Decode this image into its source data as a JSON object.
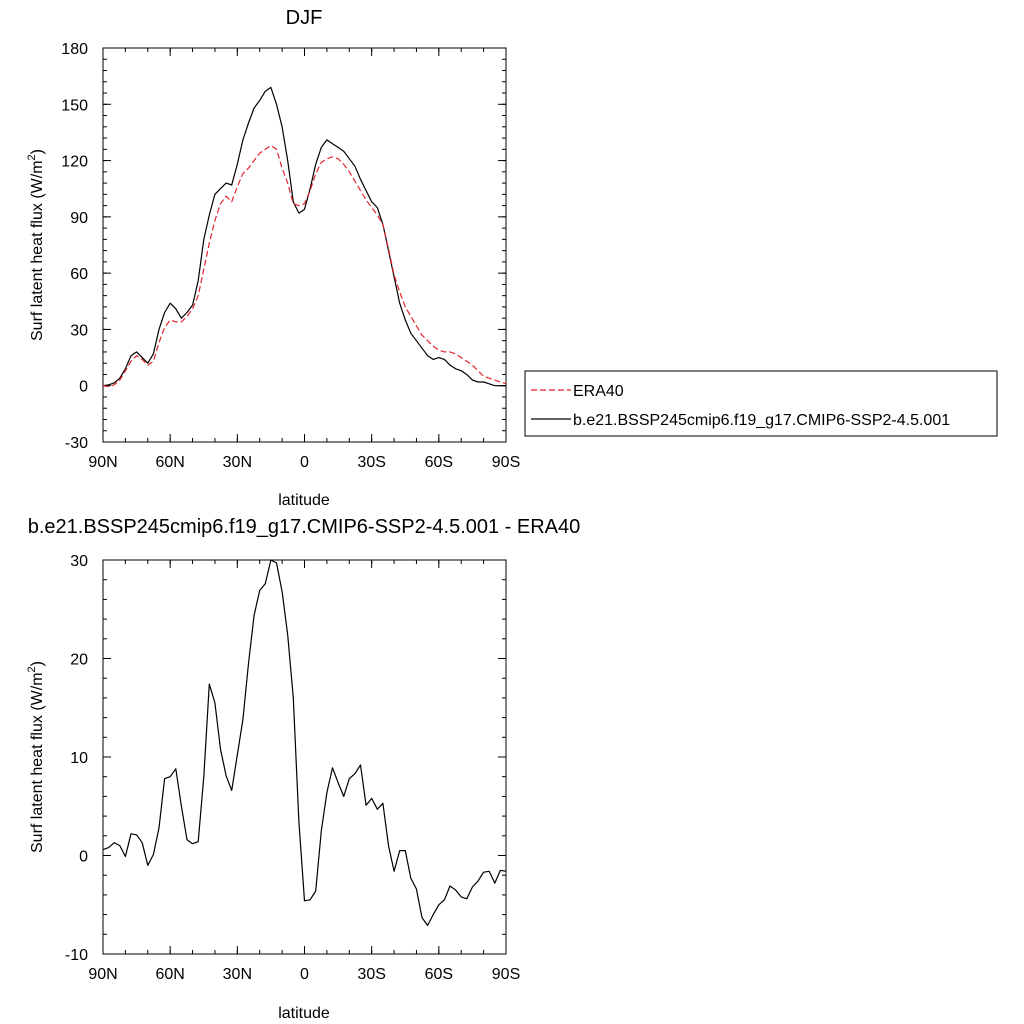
{
  "colors": {
    "ERA40": "#e3242b",
    "model": "#000000"
  },
  "chart_data": [
    {
      "type": "line",
      "title": "DJF",
      "xlabel": "latitude",
      "ylabel_main": "Surf latent heat flux (W/m",
      "ylabel_sup": "2",
      "ylabel_close": ")",
      "xlim": [
        90,
        -90
      ],
      "ylim": [
        -30,
        180
      ],
      "xticks": [
        {
          "value": 90,
          "label": "90N"
        },
        {
          "value": 60,
          "label": "60N"
        },
        {
          "value": 30,
          "label": "30N"
        },
        {
          "value": 0,
          "label": "0"
        },
        {
          "value": -30,
          "label": "30S"
        },
        {
          "value": -60,
          "label": "60S"
        },
        {
          "value": -90,
          "label": "90S"
        }
      ],
      "yticks": [
        {
          "value": -30,
          "label": "-30"
        },
        {
          "value": 0,
          "label": "0"
        },
        {
          "value": 30,
          "label": "30"
        },
        {
          "value": 60,
          "label": "60"
        },
        {
          "value": 90,
          "label": "90"
        },
        {
          "value": 120,
          "label": "120"
        },
        {
          "value": 150,
          "label": "150"
        },
        {
          "value": 180,
          "label": "180"
        }
      ],
      "legend": {
        "placement": "right",
        "entries": [
          "ERA40",
          "b.e21.BSSP245cmip6.f19_g17.CMIP6-SSP2-4.5.001"
        ]
      },
      "series": [
        {
          "name": "b.e21.BSSP245cmip6.f19_g17.CMIP6-SSP2-4.5.001",
          "style": "solid",
          "x": [
            90,
            87.5,
            85,
            82.5,
            80,
            77.5,
            75,
            72.5,
            70,
            67.5,
            65,
            62.5,
            60,
            57.5,
            55,
            52.5,
            50,
            47.5,
            45,
            42.5,
            40,
            37.5,
            35,
            32.5,
            30,
            27.5,
            25,
            22.5,
            20,
            17.5,
            15,
            12.5,
            10,
            7.5,
            5,
            2.5,
            0,
            -2.5,
            -5,
            -7.5,
            -10,
            -12.5,
            -15,
            -17.5,
            -20,
            -22.5,
            -25,
            -27.5,
            -30,
            -32.5,
            -35,
            -37.5,
            -40,
            -42.5,
            -45,
            -47.5,
            -50,
            -52.5,
            -55,
            -57.5,
            -60,
            -62.5,
            -65,
            -67.5,
            -70,
            -72.5,
            -75,
            -77.5,
            -80,
            -82.5,
            -85,
            -87.5,
            -90
          ],
          "y": [
            0,
            0.5,
            1.5,
            4,
            9,
            16,
            18,
            15,
            12,
            17,
            30,
            39,
            44,
            41,
            36,
            39,
            43,
            56,
            78,
            91,
            102,
            105,
            108,
            107,
            118,
            131,
            140,
            148,
            152,
            157,
            159,
            150,
            138,
            120,
            98,
            92,
            94,
            105,
            118,
            127,
            131,
            129,
            127,
            125,
            121,
            117,
            110,
            104,
            98,
            95,
            86,
            72,
            58,
            44,
            35,
            28,
            24,
            20,
            16,
            14,
            15,
            14,
            11,
            9,
            8,
            6,
            3,
            2,
            2,
            1,
            0,
            0,
            0
          ]
        },
        {
          "name": "ERA40",
          "style": "dashed",
          "x": [
            90,
            87.5,
            85,
            82.5,
            80,
            77.5,
            75,
            72.5,
            70,
            67.5,
            65,
            62.5,
            60,
            57.5,
            55,
            52.5,
            50,
            47.5,
            45,
            42.5,
            40,
            37.5,
            35,
            32.5,
            30,
            27.5,
            25,
            22.5,
            20,
            17.5,
            15,
            12.5,
            10,
            7.5,
            5,
            2.5,
            0,
            -2.5,
            -5,
            -7.5,
            -10,
            -12.5,
            -15,
            -17.5,
            -20,
            -22.5,
            -25,
            -27.5,
            -30,
            -32.5,
            -35,
            -37.5,
            -40,
            -42.5,
            -45,
            -47.5,
            -50,
            -52.5,
            -55,
            -57.5,
            -60,
            -62.5,
            -65,
            -67.5,
            -70,
            -72.5,
            -75,
            -77.5,
            -80,
            -82.5,
            -85,
            -87.5,
            -90
          ],
          "y": [
            0,
            -0.5,
            0.5,
            3,
            8,
            13,
            16,
            14,
            11,
            13,
            23,
            31,
            35,
            34,
            34,
            37,
            41,
            48,
            62,
            76,
            88,
            97,
            101,
            98,
            106,
            113,
            116,
            120,
            124,
            126,
            128,
            126,
            116,
            108,
            97,
            96,
            97,
            104,
            113,
            119,
            121,
            122,
            121,
            118,
            114,
            109,
            104,
            99,
            95,
            91,
            86,
            73,
            59,
            50,
            42,
            37,
            32,
            27,
            24,
            21,
            19,
            18,
            18,
            17,
            15,
            13,
            11,
            8,
            5,
            4,
            3,
            2,
            1
          ]
        }
      ]
    },
    {
      "type": "line",
      "title": "b.e21.BSSP245cmip6.f19_g17.CMIP6-SSP2-4.5.001 - ERA40",
      "xlabel": "latitude",
      "ylabel_main": "Surf latent heat flux (W/m",
      "ylabel_sup": "2",
      "ylabel_close": ")",
      "xlim": [
        90,
        -90
      ],
      "ylim": [
        -10,
        30
      ],
      "xticks": [
        {
          "value": 90,
          "label": "90N"
        },
        {
          "value": 60,
          "label": "60N"
        },
        {
          "value": 30,
          "label": "30N"
        },
        {
          "value": 0,
          "label": "0"
        },
        {
          "value": -30,
          "label": "30S"
        },
        {
          "value": -60,
          "label": "60S"
        },
        {
          "value": -90,
          "label": "90S"
        }
      ],
      "yticks": [
        {
          "value": -10,
          "label": "-10"
        },
        {
          "value": 0,
          "label": "0"
        },
        {
          "value": 10,
          "label": "10"
        },
        {
          "value": 20,
          "label": "20"
        },
        {
          "value": 30,
          "label": "30"
        }
      ],
      "series": [
        {
          "name": "b.e21.BSSP245cmip6.f19_g17.CMIP6-SSP2-4.5.001 - ERA40",
          "style": "solid",
          "x": [
            90,
            87.5,
            85,
            82.5,
            80,
            77.5,
            75,
            72.5,
            70,
            67.5,
            65,
            62.5,
            60,
            57.5,
            55,
            52.5,
            50,
            47.5,
            45,
            42.5,
            40,
            37.5,
            35,
            32.5,
            30,
            27.5,
            25,
            22.5,
            20,
            17.5,
            15,
            12.5,
            10,
            7.5,
            5,
            2.5,
            0,
            -2.5,
            -5,
            -7.5,
            -10,
            -12.5,
            -15,
            -17.5,
            -20,
            -22.5,
            -25,
            -27.5,
            -30,
            -32.5,
            -35,
            -37.5,
            -40,
            -42.5,
            -45,
            -47.5,
            -50,
            -52.5,
            -55,
            -57.5,
            -60,
            -62.5,
            -65,
            -67.5,
            -70,
            -72.5,
            -75,
            -77.5,
            -80,
            -82.5,
            -85,
            -87.5,
            -90
          ],
          "y": [
            0.6,
            0.8,
            1.3,
            1.0,
            -0.1,
            2.2,
            2.1,
            1.3,
            -1.0,
            0.1,
            2.8,
            7.8,
            8.0,
            8.8,
            5.0,
            1.6,
            1.2,
            1.4,
            8.0,
            17.4,
            15.5,
            10.8,
            8.1,
            6.6,
            10.2,
            13.8,
            19.5,
            24.4,
            26.9,
            27.6,
            30.0,
            29.7,
            26.8,
            22.4,
            16.0,
            3.4,
            -4.6,
            -4.5,
            -3.6,
            2.5,
            6.4,
            8.9,
            7.4,
            6.0,
            7.8,
            8.3,
            9.2,
            5.1,
            5.8,
            4.7,
            5.3,
            1.0,
            -1.6,
            0.5,
            0.5,
            -2.3,
            -3.4,
            -6.3,
            -7.1,
            -6.0,
            -5.0,
            -4.5,
            -3.1,
            -3.5,
            -4.2,
            -4.4,
            -3.2,
            -2.6,
            -1.7,
            -1.6,
            -2.8,
            -1.5,
            -1.6
          ]
        }
      ]
    }
  ]
}
